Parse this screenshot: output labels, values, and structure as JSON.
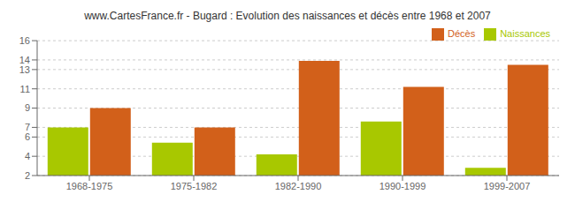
{
  "chart_data": {
    "type": "bar",
    "title": "www.CartesFrance.fr - Bugard : Evolution des naissances et décès entre 1968 et 2007",
    "categories": [
      "1968-1975",
      "1975-1982",
      "1982-1990",
      "1990-1999",
      "1999-2007"
    ],
    "series": [
      {
        "name": "Naissances",
        "color": "#a8c800",
        "values": [
          7.0,
          5.4,
          4.2,
          7.6,
          2.8
        ]
      },
      {
        "name": "Décès",
        "color": "#d2601a",
        "values": [
          9.0,
          7.0,
          13.9,
          11.2,
          13.5
        ]
      }
    ],
    "ylim": [
      2,
      16
    ],
    "yticks": [
      2,
      4,
      6,
      7,
      9,
      11,
      13,
      14,
      16
    ],
    "grid": true,
    "legend": "upper right"
  }
}
